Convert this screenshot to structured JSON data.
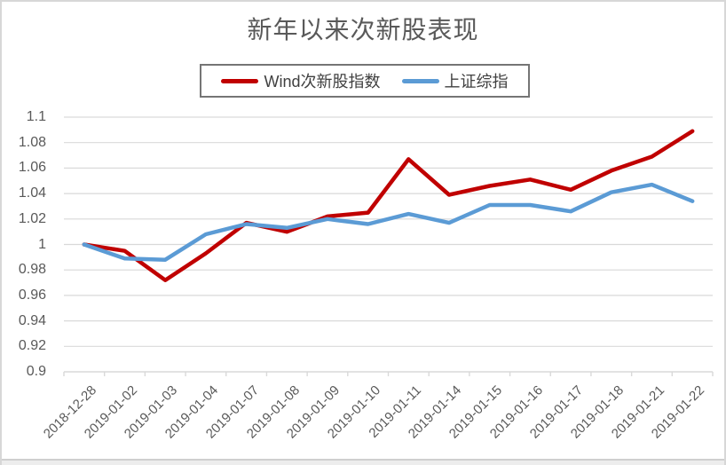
{
  "chart_data": {
    "type": "line",
    "title": "新年以来次新股表现",
    "xlabel": "",
    "ylabel": "",
    "categories": [
      "2018-12-28",
      "2019-01-02",
      "2019-01-03",
      "2019-01-04",
      "2019-01-07",
      "2019-01-08",
      "2019-01-09",
      "2019-01-10",
      "2019-01-11",
      "2019-01-14",
      "2019-01-15",
      "2019-01-16",
      "2019-01-17",
      "2019-01-18",
      "2019-01-21",
      "2019-01-22"
    ],
    "series": [
      {
        "name": "Wind次新股指数",
        "color": "#C00000",
        "values": [
          1.0,
          0.995,
          0.972,
          0.993,
          1.017,
          1.01,
          1.022,
          1.025,
          1.067,
          1.039,
          1.046,
          1.051,
          1.043,
          1.058,
          1.069,
          1.089
        ]
      },
      {
        "name": "上证综指",
        "color": "#5B9BD5",
        "values": [
          1.0,
          0.989,
          0.988,
          1.008,
          1.016,
          1.013,
          1.02,
          1.016,
          1.024,
          1.017,
          1.031,
          1.031,
          1.026,
          1.041,
          1.047,
          1.034
        ]
      }
    ],
    "ylim": [
      0.9,
      1.1
    ],
    "yticks": [
      {
        "value": 1.1,
        "label": "1.1"
      },
      {
        "value": 1.08,
        "label": "1.08"
      },
      {
        "value": 1.06,
        "label": "1.06"
      },
      {
        "value": 1.04,
        "label": "1.04"
      },
      {
        "value": 1.02,
        "label": "1.02"
      },
      {
        "value": 1.0,
        "label": "1"
      },
      {
        "value": 0.98,
        "label": "0.98"
      },
      {
        "value": 0.96,
        "label": "0.96"
      },
      {
        "value": 0.94,
        "label": "0.94"
      },
      {
        "value": 0.92,
        "label": "0.92"
      },
      {
        "value": 0.9,
        "label": "0.9"
      }
    ],
    "grid": true,
    "legend_position": "top",
    "colors": {
      "gridline": "#D9D9D9",
      "axis_line": "#D9D9D9",
      "tick_text": "#595959",
      "title_text": "#595959",
      "legend_text": "#404040",
      "legend_border": "#757575"
    }
  }
}
